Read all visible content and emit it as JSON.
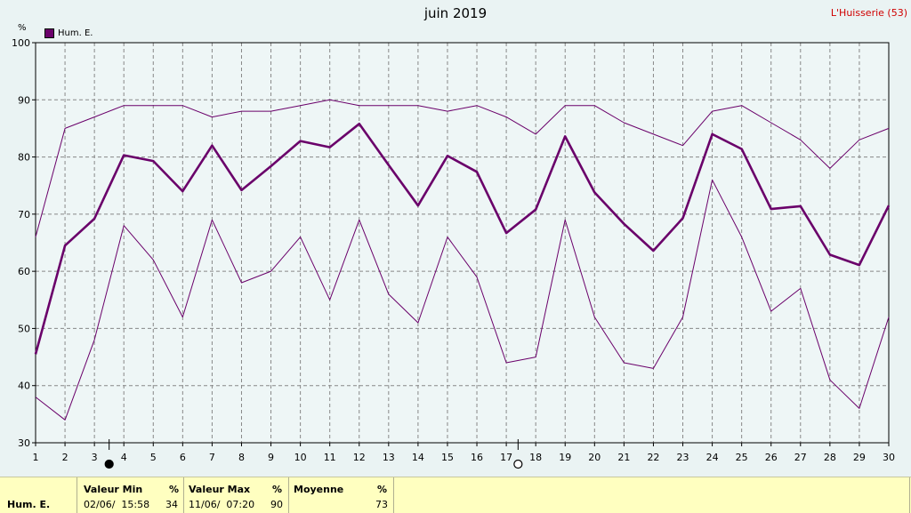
{
  "title": "juin 2019",
  "station": "L'Huisserie (53)",
  "unit": "%",
  "legend": "Hum. E.",
  "colors": {
    "series": "#6a006a",
    "grid": "#888888",
    "background": "#eaf3f3",
    "footer": "#ffffc0",
    "station": "#d00000"
  },
  "chart_data": {
    "type": "line",
    "title": "juin 2019",
    "ylabel": "%",
    "xlabel": "",
    "ylim": [
      30,
      100
    ],
    "xlim": [
      1,
      30
    ],
    "yticks": [
      30,
      40,
      50,
      60,
      70,
      80,
      90,
      100
    ],
    "xticks": [
      1,
      2,
      3,
      4,
      5,
      6,
      7,
      8,
      9,
      10,
      11,
      12,
      13,
      14,
      15,
      16,
      17,
      18,
      19,
      20,
      21,
      22,
      23,
      24,
      25,
      26,
      27,
      28,
      29,
      30
    ],
    "grid": true,
    "legend_position": "top-left",
    "moon_markers": [
      {
        "day": 3.5,
        "phase": "new"
      },
      {
        "day": 17.4,
        "phase": "full"
      }
    ],
    "series": [
      {
        "name": "Hum. E.",
        "role": "max",
        "x": [
          1,
          2,
          3,
          4,
          5,
          6,
          7,
          8,
          9,
          10,
          11,
          12,
          13,
          14,
          15,
          16,
          17,
          18,
          19,
          20,
          21,
          22,
          23,
          24,
          25,
          26,
          27,
          28,
          29,
          30
        ],
        "values": [
          66,
          85,
          87,
          89,
          89,
          89,
          87,
          88,
          88,
          89,
          90,
          89,
          89,
          89,
          88,
          89,
          87,
          84,
          89,
          89,
          86,
          84,
          82,
          88,
          89,
          86,
          83,
          78,
          83,
          85
        ]
      },
      {
        "name": "Hum. E.",
        "role": "mean",
        "x": [
          1,
          2,
          3,
          4,
          5,
          6,
          7,
          8,
          9,
          10,
          11,
          12,
          13,
          14,
          15,
          16,
          17,
          18,
          19,
          20,
          21,
          22,
          23,
          24,
          25,
          26,
          27,
          28,
          29,
          30
        ],
        "values": [
          45.5,
          64.5,
          69.2,
          80.3,
          79.3,
          74,
          82,
          74.2,
          78.4,
          82.8,
          81.7,
          85.8,
          78.6,
          71.5,
          80.2,
          77.4,
          66.7,
          70.8,
          83.6,
          73.8,
          68.3,
          63.6,
          69.3,
          84,
          81.4,
          70.9,
          71.4,
          62.9,
          61.1,
          71.5
        ]
      },
      {
        "name": "Hum. E.",
        "role": "min",
        "x": [
          1,
          2,
          3,
          4,
          5,
          6,
          7,
          8,
          9,
          10,
          11,
          12,
          13,
          14,
          15,
          16,
          17,
          18,
          19,
          20,
          21,
          22,
          23,
          24,
          25,
          26,
          27,
          28,
          29,
          30
        ],
        "values": [
          38,
          34,
          48,
          68,
          62,
          52,
          69,
          58,
          60,
          66,
          55,
          69,
          56,
          51,
          66,
          59,
          44,
          45,
          69,
          52,
          44,
          43,
          52,
          76,
          66,
          53,
          57,
          41,
          36,
          52
        ]
      }
    ]
  },
  "footer": {
    "series_label": "Hum. E.",
    "min": {
      "header": "Valeur Min",
      "unit": "%",
      "date": "02/06/  15:58",
      "value": "34"
    },
    "max": {
      "header": "Valeur Max",
      "unit": "%",
      "date": "11/06/  07:20",
      "value": "90"
    },
    "mean": {
      "header": "Moyenne",
      "unit": "%",
      "value": "73"
    }
  }
}
